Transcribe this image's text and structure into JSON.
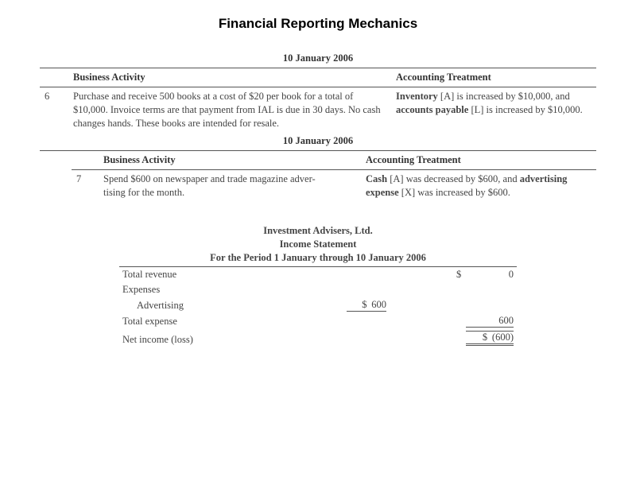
{
  "title": "Financial Reporting Mechanics",
  "activity1": {
    "date": "10 January 2006",
    "head_activity": "Business Activity",
    "head_treatment": "Accounting Treatment",
    "num": "6",
    "activity_html": "Purchase and receive 500 books at a cost of $20 per book for a total of $10,000. Invoice terms are that payment from IAL is due in 30 days. No cash changes hands. These books are intended for resale.",
    "treatment_html": "<b>Inventory</b> [A] is increased by $10,000, and <b>accounts payable</b> [L] is increased by $10,000."
  },
  "activity2": {
    "date": "10 January 2006",
    "head_activity": "Business Activity",
    "head_treatment": "Accounting Treatment",
    "num": "7",
    "activity_html": "Spend $600 on newspaper and trade magazine adver-<br>tising for the month.",
    "treatment_html": "<b>Cash</b> [A] was decreased by $600, and <b>advertising expense</b> [X] was increased by $600."
  },
  "stmt": {
    "company": "Investment Advisers, Ltd.",
    "title": "Income Statement",
    "period": "For the Period 1 January through 10 January 2006",
    "rows": {
      "total_revenue_label": "Total revenue",
      "total_revenue_amt": "0",
      "expenses_label": "Expenses",
      "advertising_label": "Advertising",
      "advertising_amt": "600",
      "total_expense_label": "Total expense",
      "total_expense_amt": "600",
      "net_income_label": "Net income (loss)",
      "net_income_amt": "(600)"
    }
  }
}
